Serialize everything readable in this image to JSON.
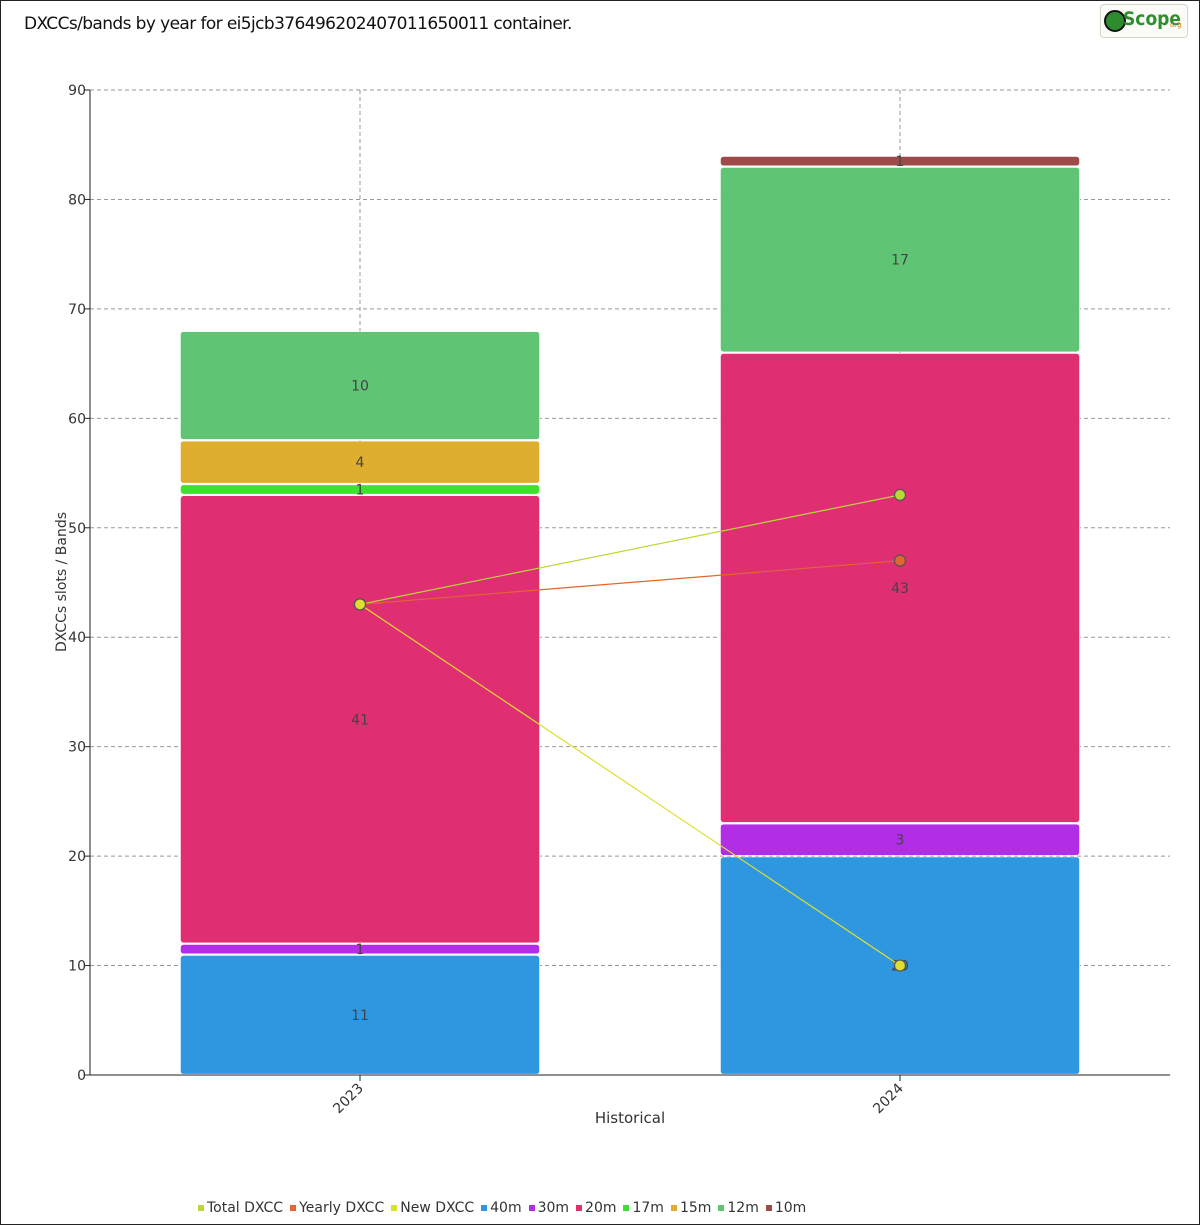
{
  "title": "DXCCs/bands by year for ei5jcb3764962024070116500​11 container.",
  "logo": {
    "text": "Scope",
    "tld": "org"
  },
  "chart_data": {
    "type": "bar",
    "stacked": true,
    "categories": [
      "2023",
      "2024"
    ],
    "xlabel": "Historical",
    "ylabel": "DXCCs slots / Bands",
    "ylim": [
      0,
      90
    ],
    "yticks": [
      0,
      10,
      20,
      30,
      40,
      50,
      60,
      70,
      80,
      90
    ],
    "grid": true,
    "legend_position": "bottom",
    "bar_series": [
      {
        "name": "40m",
        "color": "#2f97e0",
        "values": [
          11,
          20
        ]
      },
      {
        "name": "30m",
        "color": "#b22ee6",
        "values": [
          1,
          3
        ]
      },
      {
        "name": "20m",
        "color": "#e02e73",
        "values": [
          41,
          43
        ]
      },
      {
        "name": "17m",
        "color": "#3fe02f",
        "values": [
          1,
          0
        ]
      },
      {
        "name": "15m",
        "color": "#e0ae2f",
        "values": [
          4,
          0
        ]
      },
      {
        "name": "12m",
        "color": "#5fc473",
        "values": [
          10,
          17
        ]
      },
      {
        "name": "10m",
        "color": "#9e4a48",
        "values": [
          0,
          1
        ]
      }
    ],
    "line_series": [
      {
        "name": "Total DXCC",
        "color": "#b9d93a",
        "values": [
          43,
          53
        ]
      },
      {
        "name": "Yearly DXCC",
        "color": "#e0672f",
        "values": [
          43,
          47
        ]
      },
      {
        "name": "New DXCC",
        "color": "#dede2f",
        "values": [
          43,
          10
        ]
      }
    ],
    "legend": [
      "Total DXCC",
      "Yearly DXCC",
      "New DXCC",
      "40m",
      "30m",
      "20m",
      "17m",
      "15m",
      "12m",
      "10m"
    ]
  }
}
